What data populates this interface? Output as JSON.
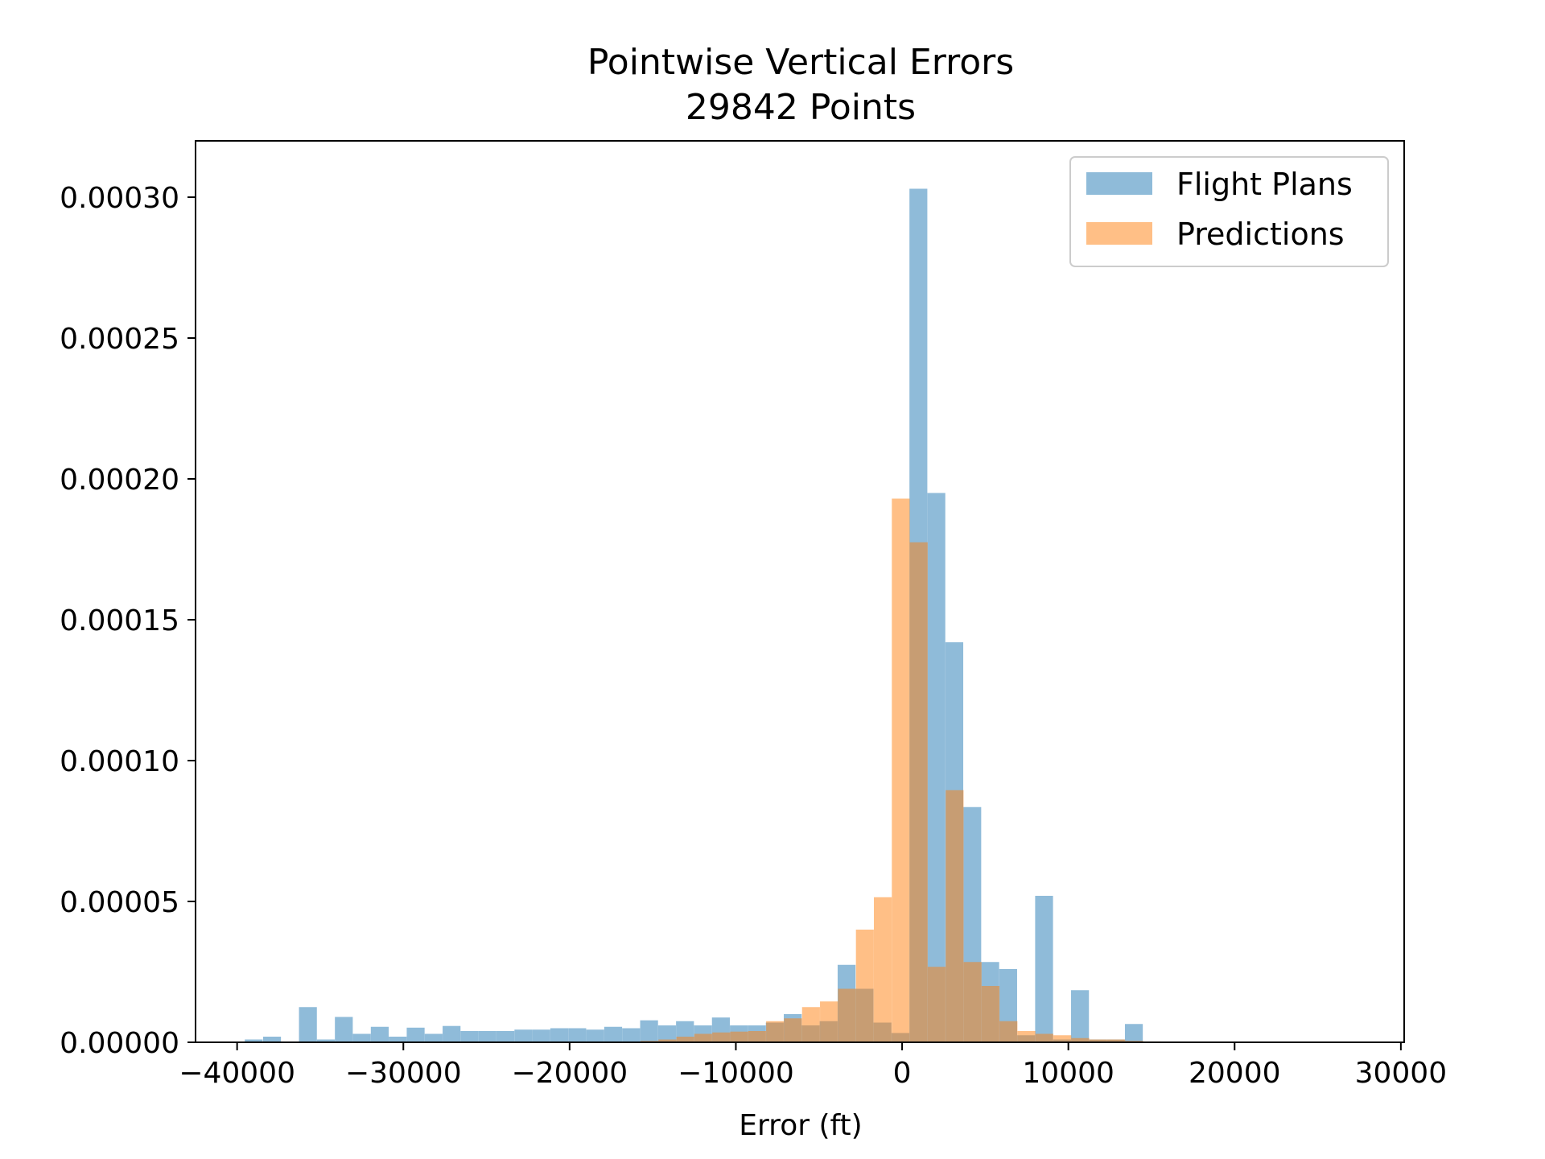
{
  "chart_data": {
    "type": "histogram",
    "title": "Pointwise Vertical Errors",
    "subtitle": "29842 Points",
    "xlabel": "Error (ft)",
    "ylabel": "",
    "xlim": [
      -42500,
      30200
    ],
    "ylim": [
      0,
      0.00032
    ],
    "x_ticks": [
      -40000,
      -30000,
      -20000,
      -10000,
      0,
      10000,
      20000,
      30000
    ],
    "x_tick_labels": [
      "−40000",
      "−30000",
      "−20000",
      "−10000",
      "0",
      "10000",
      "20000",
      "30000"
    ],
    "y_ticks": [
      0,
      5e-05,
      0.0001,
      0.00015,
      0.0002,
      0.00025,
      0.0003
    ],
    "y_tick_labels": [
      "0.00000",
      "0.00005",
      "0.00010",
      "0.00015",
      "0.00020",
      "0.00025",
      "0.00030"
    ],
    "grid": false,
    "legend": {
      "position": "top-right"
    },
    "series": [
      {
        "name": "Flight Plans",
        "color": "#1f77b4",
        "opacity": 0.5,
        "bin_width": 1075,
        "bins": [
          [
            -39000,
            1e-06
          ],
          [
            -37900,
            2e-06
          ],
          [
            -35740,
            1.25e-05
          ],
          [
            -34660,
            1e-06
          ],
          [
            -33580,
            9e-06
          ],
          [
            -32500,
            3e-06
          ],
          [
            -31420,
            5.5e-06
          ],
          [
            -30340,
            2e-06
          ],
          [
            -29260,
            5.2e-06
          ],
          [
            -28180,
            3e-06
          ],
          [
            -27100,
            5.8e-06
          ],
          [
            -26020,
            4e-06
          ],
          [
            -24940,
            4e-06
          ],
          [
            -23860,
            4e-06
          ],
          [
            -22780,
            4.5e-06
          ],
          [
            -21700,
            4.5e-06
          ],
          [
            -20620,
            5e-06
          ],
          [
            -19540,
            5e-06
          ],
          [
            -18460,
            4.5e-06
          ],
          [
            -17380,
            5.5e-06
          ],
          [
            -16300,
            5e-06
          ],
          [
            -15220,
            7.8e-06
          ],
          [
            -14140,
            6e-06
          ],
          [
            -13060,
            7.5e-06
          ],
          [
            -11980,
            6e-06
          ],
          [
            -10900,
            8.8e-06
          ],
          [
            -9820,
            6e-06
          ],
          [
            -8740,
            6e-06
          ],
          [
            -7660,
            7e-06
          ],
          [
            -6580,
            1e-05
          ],
          [
            -5500,
            6e-06
          ],
          [
            -4420,
            7.5e-06
          ],
          [
            -3340,
            2.75e-05
          ],
          [
            -2260,
            1.9e-05
          ],
          [
            -1180,
            7e-06
          ],
          [
            -100,
            3.3e-06
          ],
          [
            980,
            0.000303
          ],
          [
            2060,
            0.000195
          ],
          [
            3140,
            0.000142
          ],
          [
            4220,
            8.35e-05
          ],
          [
            5300,
            2.85e-05
          ],
          [
            6380,
            2.6e-05
          ],
          [
            7460,
            2.5e-06
          ],
          [
            8540,
            5.2e-05
          ],
          [
            9620,
            1e-06
          ],
          [
            10700,
            1.85e-05
          ],
          [
            11780,
            1e-06
          ],
          [
            12860,
            1e-06
          ],
          [
            13940,
            6.5e-06
          ]
        ]
      },
      {
        "name": "Predictions",
        "color": "#ff7f0e",
        "opacity": 0.5,
        "bin_width": 1075,
        "bins": [
          [
            -15200,
            5e-07
          ],
          [
            -14120,
            1e-06
          ],
          [
            -13040,
            2e-06
          ],
          [
            -11960,
            3e-06
          ],
          [
            -10880,
            3.5e-06
          ],
          [
            -9800,
            3.8e-06
          ],
          [
            -8720,
            4e-06
          ],
          [
            -7640,
            7.5e-06
          ],
          [
            -6560,
            8.5e-06
          ],
          [
            -5480,
            1.25e-05
          ],
          [
            -4400,
            1.45e-05
          ],
          [
            -3320,
            1.9e-05
          ],
          [
            -2240,
            4e-05
          ],
          [
            -1160,
            5.15e-05
          ],
          [
            -80,
            0.000193
          ],
          [
            1000,
            0.0001775
          ],
          [
            2080,
            2.68e-05
          ],
          [
            3160,
            8.95e-05
          ],
          [
            4240,
            2.85e-05
          ],
          [
            5320,
            2e-05
          ],
          [
            6400,
            7.5e-06
          ],
          [
            7480,
            4e-06
          ],
          [
            8560,
            3e-06
          ],
          [
            9640,
            2.5e-06
          ],
          [
            10720,
            1.5e-06
          ],
          [
            11800,
            1e-06
          ],
          [
            12880,
            1e-06
          ],
          [
            13960,
            5e-07
          ],
          [
            15040,
            3e-07
          ]
        ]
      }
    ]
  }
}
